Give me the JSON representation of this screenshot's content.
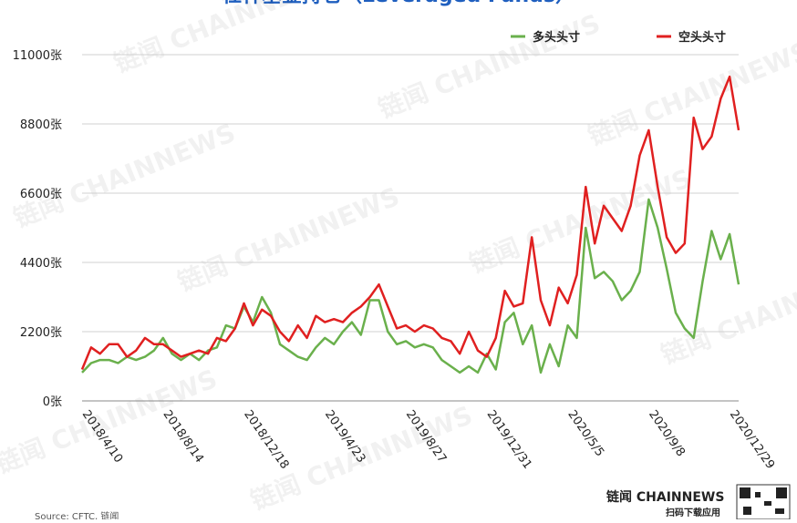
{
  "chart_data": {
    "type": "line",
    "title": "杠杆基金持仓（Leveraged Funds）",
    "source": "Source: CFTC, 链闻",
    "watermark": "链闻 CHAINNEWS",
    "brand": "链闻 CHAINNEWS",
    "brand_sub": "扫码下载应用",
    "legend_position": "top-right",
    "grid": true,
    "categories": [
      "2018/4/10",
      null,
      null,
      null,
      null,
      null,
      null,
      null,
      null,
      "2018/8/14",
      null,
      null,
      null,
      null,
      null,
      null,
      null,
      null,
      "2018/12/18",
      null,
      null,
      null,
      null,
      null,
      null,
      null,
      null,
      "2019/4/23",
      null,
      null,
      null,
      null,
      null,
      null,
      null,
      null,
      "2019/8/27",
      null,
      null,
      null,
      null,
      null,
      null,
      null,
      null,
      "2019/12/31",
      null,
      null,
      null,
      null,
      null,
      null,
      null,
      null,
      "2020/5/5",
      null,
      null,
      null,
      null,
      null,
      null,
      null,
      null,
      "2020/9/8",
      null,
      null,
      null,
      null,
      null,
      null,
      null,
      null,
      "2020/12/29",
      null
    ],
    "ylim": [
      0,
      11000
    ],
    "yticks": [
      {
        "value": 0,
        "label": "0张"
      },
      {
        "value": 2200,
        "label": "2200张"
      },
      {
        "value": 4400,
        "label": "4400张"
      },
      {
        "value": 6600,
        "label": "6600张"
      },
      {
        "value": 8800,
        "label": "8800张"
      },
      {
        "value": 11000,
        "label": "11000张"
      }
    ],
    "series": [
      {
        "name": "多头头寸",
        "color": "#6ab04c",
        "values": [
          900,
          1200,
          1300,
          1300,
          1200,
          1400,
          1300,
          1400,
          1600,
          2000,
          1500,
          1300,
          1500,
          1300,
          1600,
          1700,
          2400,
          2300,
          3000,
          2500,
          3300,
          2800,
          1800,
          1600,
          1400,
          1300,
          1700,
          2000,
          1800,
          2200,
          2500,
          2100,
          3200,
          3200,
          2200,
          1800,
          1900,
          1700,
          1800,
          1700,
          1300,
          1100,
          900,
          1100,
          900,
          1500,
          1000,
          2500,
          2800,
          1800,
          2400,
          900,
          1800,
          1100,
          2400,
          2000,
          5500,
          3900,
          4100,
          3800,
          3200,
          3500,
          4100,
          6400,
          5500,
          4200,
          2800,
          2300,
          2000,
          3800,
          5400,
          4500,
          5300,
          3700
        ]
      },
      {
        "name": "空头头寸",
        "color": "#e02020",
        "values": [
          1000,
          1700,
          1500,
          1800,
          1800,
          1400,
          1600,
          2000,
          1800,
          1800,
          1600,
          1400,
          1500,
          1600,
          1500,
          2000,
          1900,
          2300,
          3100,
          2400,
          2900,
          2700,
          2200,
          1900,
          2400,
          2000,
          2700,
          2500,
          2600,
          2500,
          2800,
          3000,
          3300,
          3700,
          3000,
          2300,
          2400,
          2200,
          2400,
          2300,
          2000,
          1900,
          1500,
          2200,
          1600,
          1400,
          2000,
          3500,
          3000,
          3100,
          5200,
          3200,
          2400,
          3600,
          3100,
          4000,
          6800,
          5000,
          6200,
          5800,
          5400,
          6200,
          7800,
          8600,
          6800,
          5200,
          4700,
          5000,
          9000,
          8000,
          8400,
          9600,
          10300,
          8600
        ]
      }
    ]
  }
}
